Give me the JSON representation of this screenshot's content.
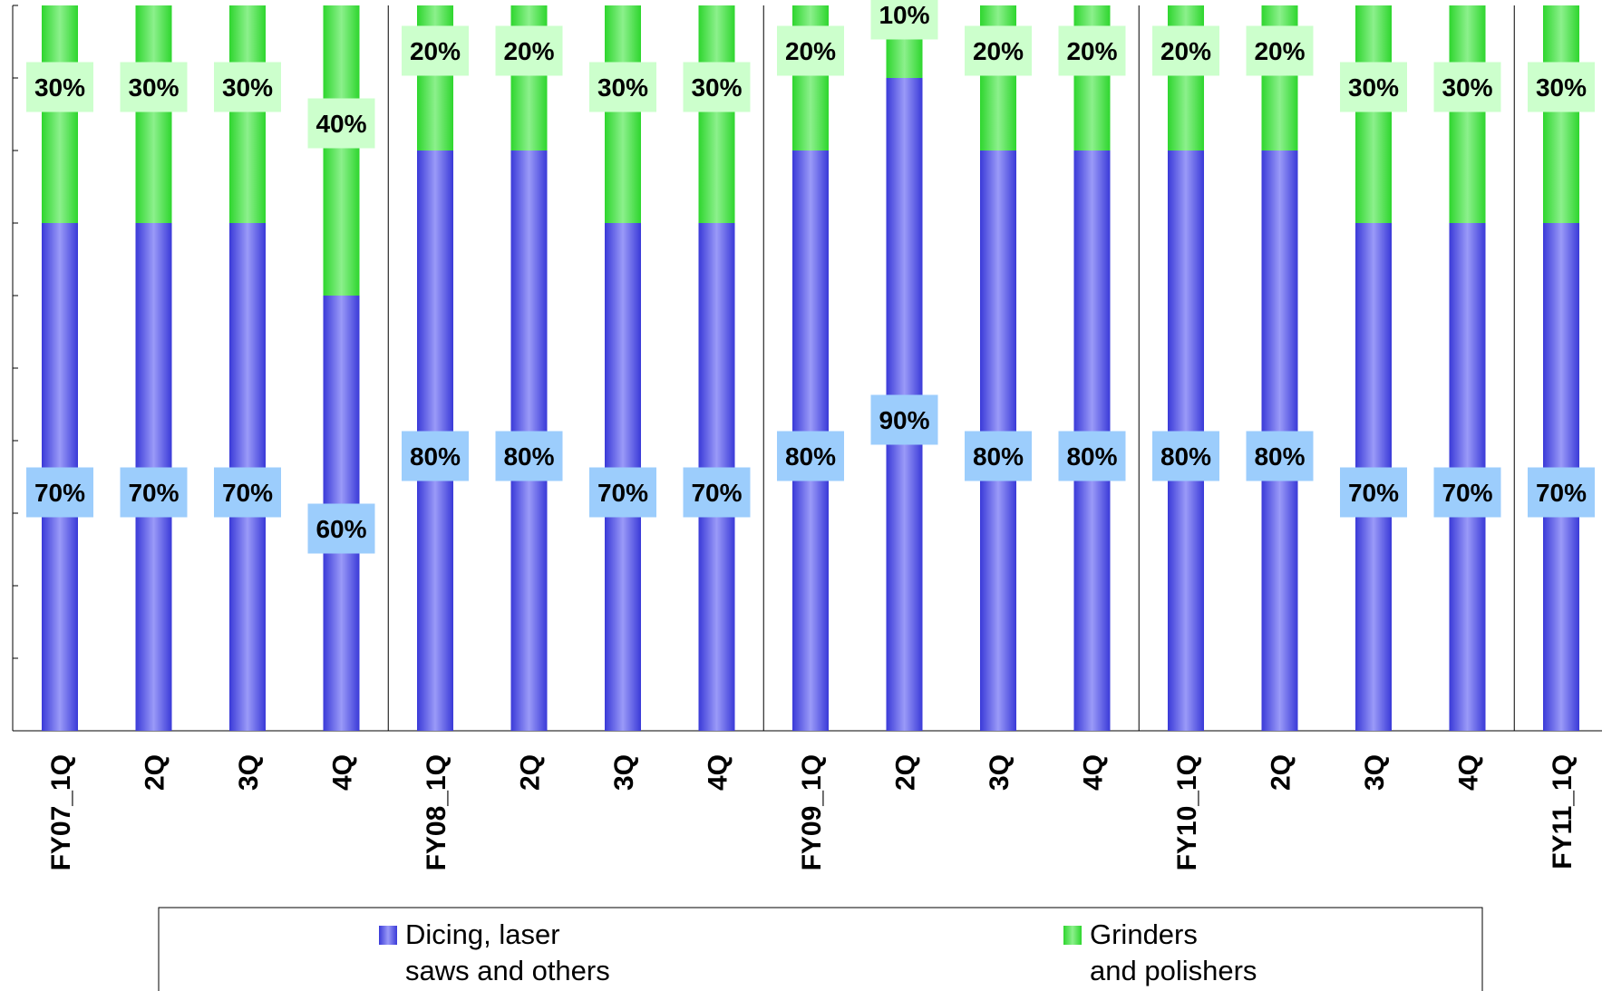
{
  "chart_data": {
    "type": "bar",
    "stacked": true,
    "normalized_percent": true,
    "categories": [
      "FY07_1Q",
      "2Q",
      "3Q",
      "4Q",
      "FY08_1Q",
      "2Q",
      "3Q",
      "4Q",
      "FY09_1Q",
      "2Q",
      "3Q",
      "4Q",
      "FY10_1Q",
      "2Q",
      "3Q",
      "4Q",
      "FY11_1Q"
    ],
    "series": [
      {
        "name": "Dicing, laser saws and others",
        "color": "#5a5ae6",
        "values": [
          70,
          70,
          70,
          60,
          80,
          80,
          70,
          70,
          80,
          90,
          80,
          80,
          80,
          80,
          70,
          70,
          70
        ],
        "labels": [
          "70%",
          "70%",
          "70%",
          "60%",
          "80%",
          "80%",
          "70%",
          "70%",
          "80%",
          "90%",
          "80%",
          "80%",
          "80%",
          "80%",
          "70%",
          "70%",
          "70%"
        ]
      },
      {
        "name": "Grinders and polishers",
        "color": "#44e644",
        "values": [
          30,
          30,
          30,
          40,
          20,
          20,
          30,
          30,
          20,
          10,
          20,
          20,
          20,
          20,
          30,
          30,
          30
        ],
        "labels": [
          "30%",
          "30%",
          "30%",
          "40%",
          "20%",
          "20%",
          "30%",
          "30%",
          "20%",
          "10%",
          "20%",
          "20%",
          "20%",
          "20%",
          "30%",
          "30%",
          "30%"
        ]
      }
    ],
    "legend": [
      {
        "line1": "Dicing, laser",
        "line2": "saws and others"
      },
      {
        "line1": "Grinders",
        "line2": "and polishers"
      }
    ],
    "legend_position": "bottom",
    "ylim": [
      0,
      100
    ],
    "y_ticks": [
      0,
      10,
      20,
      30,
      40,
      50,
      60,
      70,
      80,
      90,
      100
    ],
    "y_tick_labels_shown": false,
    "fiscal_year_separators_after": [
      3,
      7,
      11,
      15
    ],
    "grid": false,
    "label_box_colors": {
      "Dicing, laser saws and others": "#9ccdfc",
      "Grinders and polishers": "#ccffcc"
    }
  }
}
